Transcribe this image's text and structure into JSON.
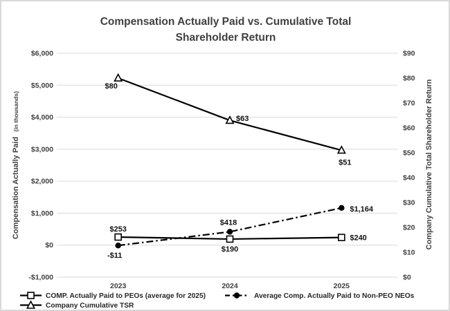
{
  "window": {
    "background": "#ffffff",
    "border_color": "#d9d9d9"
  },
  "chart_data": {
    "type": "line",
    "title_line1": "Compensation Actually Paid vs. Cumulative Total",
    "title_line2": "Shareholder Return",
    "categories": [
      "2023",
      "2024",
      "2025"
    ],
    "grid": true,
    "legend_position": "bottom",
    "left_axis": {
      "title_main": "Compensation Actually Paid",
      "title_sub": "(in thousands)",
      "min": -1000,
      "max": 6000,
      "step": 1000,
      "tick_labels": [
        "$6,000",
        "$5,000",
        "$4,000",
        "$3,000",
        "$2,000",
        "$1,000",
        "$0",
        "-$1,000"
      ],
      "tick_values": [
        6000,
        5000,
        4000,
        3000,
        2000,
        1000,
        0,
        -1000
      ]
    },
    "right_axis": {
      "title": "Company Cumulative Total Shareholder Return",
      "min": 0,
      "max": 90,
      "step": 10,
      "tick_labels": [
        "$90",
        "$80",
        "$70",
        "$60",
        "$50",
        "$40",
        "$30",
        "$20",
        "$10",
        "$0"
      ],
      "tick_values": [
        90,
        80,
        70,
        60,
        50,
        40,
        30,
        20,
        10,
        0
      ]
    },
    "series": [
      {
        "name": "COMP. Actually Paid to PEOs (average for 2025)",
        "axis": "left",
        "marker": "square",
        "line_style": "solid",
        "values": [
          253,
          190,
          240
        ],
        "data_labels": [
          {
            "text": "$253",
            "dx": 0,
            "dy": -8,
            "anchor": "middle"
          },
          {
            "text": "$190",
            "dx": 0,
            "dy": 18,
            "anchor": "middle"
          },
          {
            "text": "$240",
            "dx": 12,
            "dy": 4,
            "anchor": "start"
          }
        ]
      },
      {
        "name": "Average Comp. Actually Paid to Non-PEO NEOs",
        "axis": "left",
        "marker": "circle",
        "line_style": "dash-dot",
        "values": [
          -11,
          418,
          1164
        ],
        "data_labels": [
          {
            "text": "-$11",
            "dx": -5,
            "dy": 18,
            "anchor": "middle"
          },
          {
            "text": "$418",
            "dx": -2,
            "dy": -10,
            "anchor": "middle"
          },
          {
            "text": "$1,164",
            "dx": 12,
            "dy": 5,
            "anchor": "start"
          }
        ]
      },
      {
        "name": "Company Cumulative TSR",
        "axis": "right",
        "marker": "triangle",
        "line_style": "solid",
        "values": [
          80,
          63,
          51
        ],
        "data_labels": [
          {
            "text": "$80",
            "dx": -10,
            "dy": 15,
            "anchor": "middle"
          },
          {
            "text": "$63",
            "dx": 9,
            "dy": 1,
            "anchor": "start"
          },
          {
            "text": "$51",
            "dx": 5,
            "dy": 21,
            "anchor": "middle"
          }
        ]
      }
    ],
    "colors": {
      "series": "#000000",
      "grid": "#d9d9d9",
      "text": "#404040",
      "data_label": "#111111"
    }
  }
}
